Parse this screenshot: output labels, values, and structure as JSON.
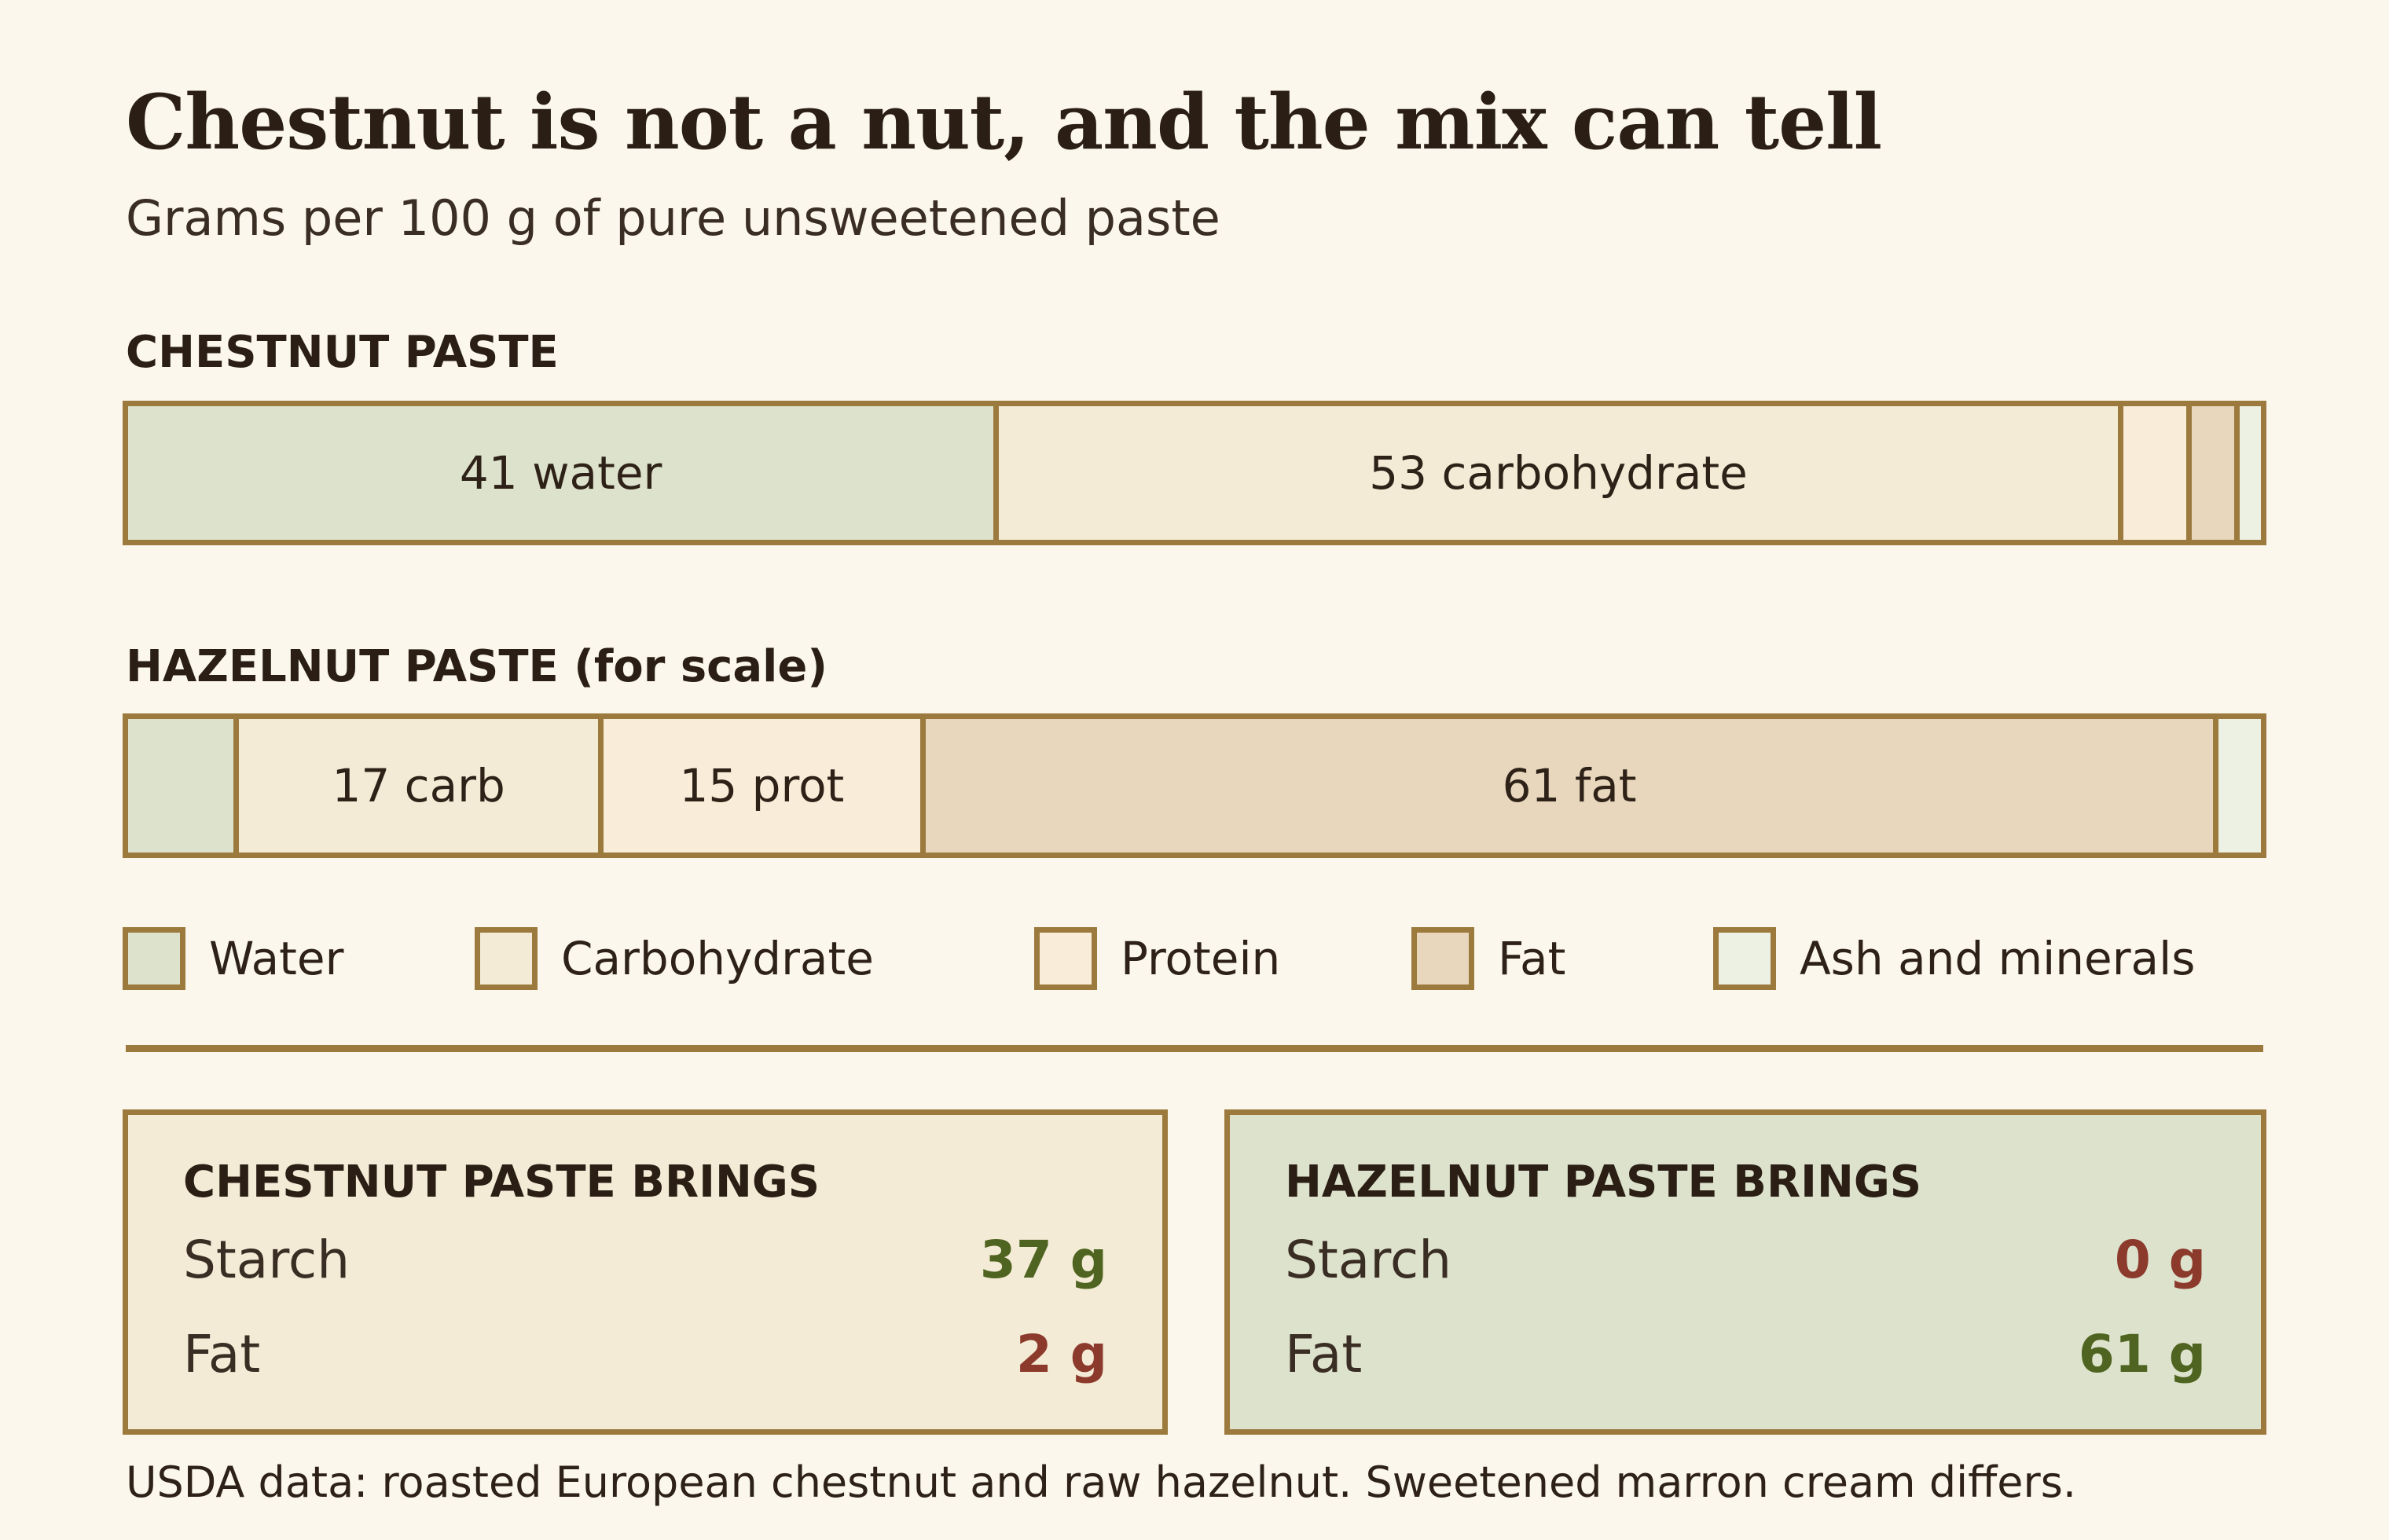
{
  "title": "Chestnut is not a nut, and the mix can tell",
  "subtitle": "Grams per 100 g of pure unsweetened paste",
  "colors": {
    "water": "#dde2cc",
    "carbohydrate": "#f3ebd6",
    "protein": "#f9ecd8",
    "fat": "#e8d7bd",
    "ash": "#edf1e3",
    "border": "#9c7a3e",
    "good": "#4f6420",
    "bad": "#8b3a2c"
  },
  "chart_data": [
    {
      "type": "bar",
      "title": "CHESTNUT PASTE",
      "stacked": true,
      "total": 100,
      "segments": [
        {
          "component": "water",
          "value": 41,
          "label": "41 water"
        },
        {
          "component": "carbohydrate",
          "value": 53,
          "label": "53 carbohydrate"
        },
        {
          "component": "protein",
          "value": 3,
          "label": ""
        },
        {
          "component": "fat",
          "value": 2,
          "label": ""
        },
        {
          "component": "ash",
          "value": 1,
          "label": ""
        }
      ]
    },
    {
      "type": "bar",
      "title": "HAZELNUT PASTE (for scale)",
      "stacked": true,
      "total": 100,
      "segments": [
        {
          "component": "water",
          "value": 5,
          "label": ""
        },
        {
          "component": "carbohydrate",
          "value": 17,
          "label": "17 carb"
        },
        {
          "component": "protein",
          "value": 15,
          "label": "15 prot"
        },
        {
          "component": "fat",
          "value": 61,
          "label": "61 fat"
        },
        {
          "component": "ash",
          "value": 2,
          "label": ""
        }
      ]
    }
  ],
  "legend": [
    {
      "component": "water",
      "label": "Water"
    },
    {
      "component": "carbohydrate",
      "label": "Carbohydrate"
    },
    {
      "component": "protein",
      "label": "Protein"
    },
    {
      "component": "fat",
      "label": "Fat"
    },
    {
      "component": "ash",
      "label": "Ash and minerals"
    }
  ],
  "cards": {
    "chestnut": {
      "title": "CHESTNUT PASTE BRINGS",
      "rows": [
        {
          "label": "Starch",
          "value": "37 g",
          "tone": "good"
        },
        {
          "label": "Fat",
          "value": "2 g",
          "tone": "bad"
        }
      ]
    },
    "hazelnut": {
      "title": "HAZELNUT PASTE BRINGS",
      "rows": [
        {
          "label": "Starch",
          "value": "0 g",
          "tone": "bad"
        },
        {
          "label": "Fat",
          "value": "61 g",
          "tone": "good"
        }
      ]
    }
  },
  "footnote": "USDA data: roasted European chestnut and raw hazelnut. Sweetened marron cream differs."
}
